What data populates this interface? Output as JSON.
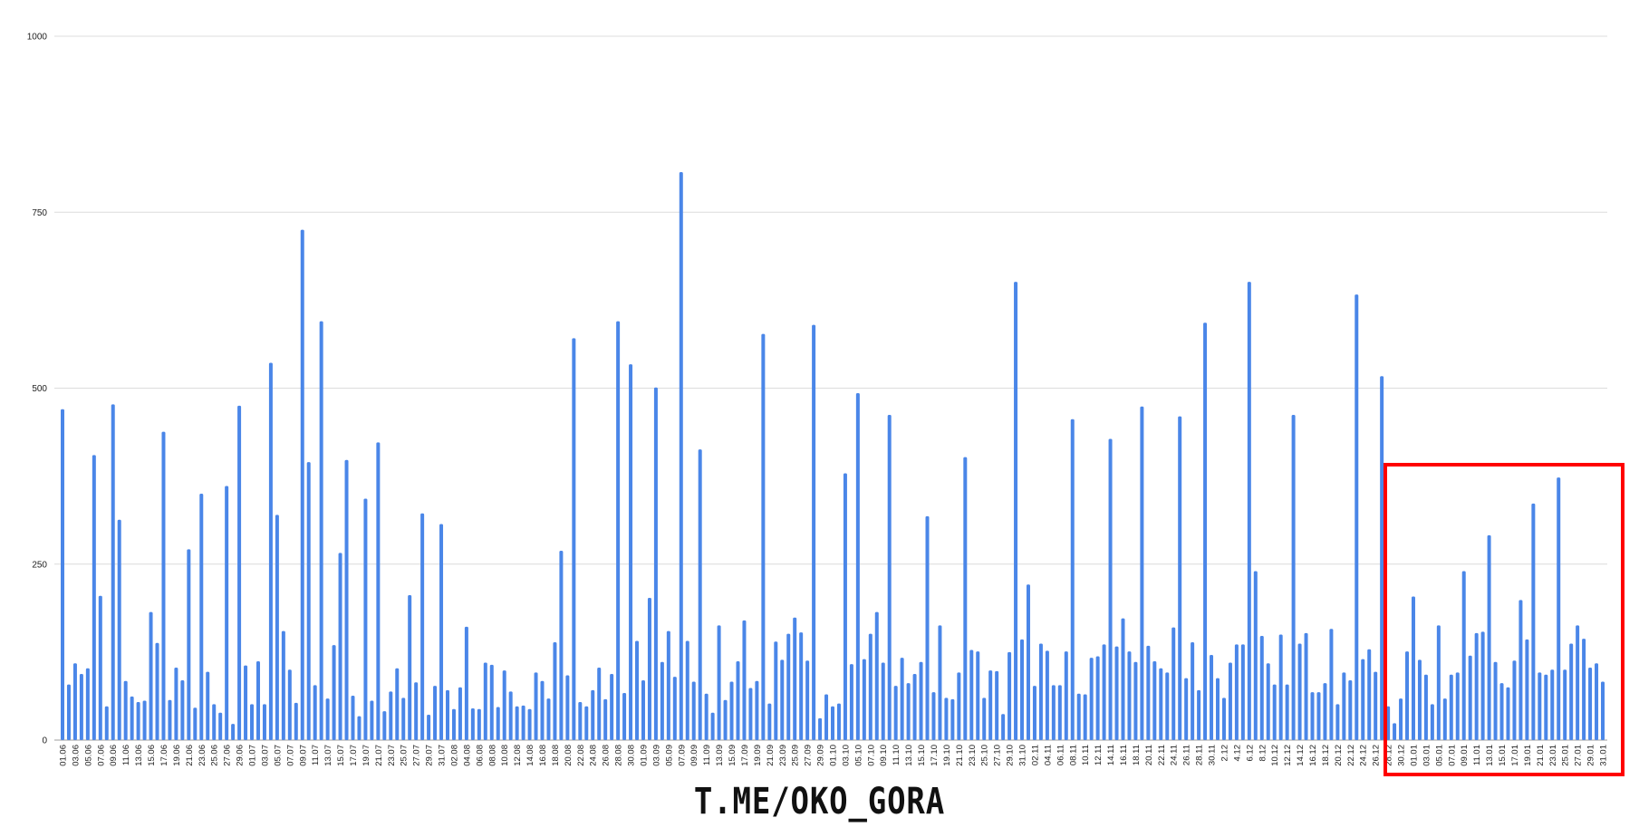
{
  "chart_data": {
    "type": "bar",
    "title": "",
    "xlabel": "",
    "ylabel": "",
    "ylim": [
      0,
      1000
    ],
    "yticks": [
      "0",
      "250",
      "500",
      "750",
      "1000"
    ],
    "grid": true,
    "bar_color": "#4a86e8",
    "categories": [
      "01.06",
      "02.06",
      "03.06",
      "04.06",
      "05.06",
      "06.06",
      "07.06",
      "08.06",
      "09.06",
      "10.06",
      "11.06",
      "12.06",
      "13.06",
      "14.06",
      "15.06",
      "16.06",
      "17.06",
      "18.06",
      "19.06",
      "20.06",
      "21.06",
      "22.06",
      "23.06",
      "24.06",
      "25.06",
      "26.06",
      "27.06",
      "28.06",
      "29.06",
      "30.06",
      "01.07",
      "02.07",
      "03.07",
      "04.07",
      "05.07",
      "06.07",
      "07.07",
      "08.07",
      "09.07",
      "10.07",
      "11.07",
      "12.07",
      "13.07",
      "14.07",
      "15.07",
      "16.07",
      "17.07",
      "18.07",
      "19.07",
      "20.07",
      "21.07",
      "22.07",
      "23.07",
      "24.07",
      "25.07",
      "26.07",
      "27.07",
      "28.07",
      "29.07",
      "30.07",
      "31.07",
      "01.08",
      "02.08",
      "03.08",
      "04.08",
      "05.08",
      "06.08",
      "07.08",
      "08.08",
      "09.08",
      "10.08",
      "11.08",
      "12.08",
      "13.08",
      "14.08",
      "15.08",
      "16.08",
      "17.08",
      "18.08",
      "19.08",
      "20.08",
      "21.08",
      "22.08",
      "23.08",
      "24.08",
      "25.08",
      "26.08",
      "27.08",
      "28.08",
      "29.08",
      "30.08",
      "31.08",
      "01.09",
      "02.09",
      "03.09",
      "04.09",
      "05.09",
      "06.09",
      "07.09",
      "08.09",
      "09.09",
      "10.09",
      "11.09",
      "12.09",
      "13.09",
      "14.09",
      "15.09",
      "16.09",
      "17.09",
      "18.09",
      "19.09",
      "20.09",
      "21.09",
      "22.09",
      "23.09",
      "24.09",
      "25.09",
      "26.09",
      "27.09",
      "28.09",
      "29.09",
      "30.09",
      "01.10",
      "02.10",
      "03.10",
      "04.10",
      "05.10",
      "06.10",
      "07.10",
      "08.10",
      "09.10",
      "10.10",
      "11.10",
      "12.10",
      "13.10",
      "14.10",
      "15.10",
      "16.10",
      "17.10",
      "18.10",
      "19.10",
      "20.10",
      "21.10",
      "22.10",
      "23.10",
      "24.10",
      "25.10",
      "26.10",
      "27.10",
      "28.10",
      "29.10",
      "30.10",
      "31.10",
      "01.11",
      "02.11",
      "03.11",
      "04.11",
      "05.11",
      "06.11",
      "07.11",
      "08.11",
      "09.11",
      "10.11",
      "11.11",
      "12.11",
      "13.11",
      "14.11",
      "15.11",
      "16.11",
      "17.11",
      "18.11",
      "19.11",
      "20.11",
      "21.11",
      "22.11",
      "23.11",
      "24.11",
      "25.11",
      "26.11",
      "27.11",
      "28.11",
      "29.11",
      "30.11",
      "1.12",
      "2.12",
      "3.12",
      "4.12",
      "5.12",
      "6.12",
      "7.12",
      "8.12",
      "9.12",
      "10.12",
      "11.12",
      "12.12",
      "13.12",
      "14.12",
      "15.12",
      "16.12",
      "17.12",
      "18.12",
      "19.12",
      "20.12",
      "21.12",
      "22.12",
      "23.12",
      "24.12",
      "25.12",
      "26.12",
      "27.12",
      "28.12",
      "29.12",
      "30.12",
      "31.12",
      "01.01",
      "02.01",
      "03.01",
      "04.01",
      "05.01",
      "06.01",
      "07.01",
      "08.01",
      "09.01",
      "10.01",
      "11.01",
      "12.01",
      "13.01",
      "14.01",
      "15.01",
      "16.01",
      "17.01",
      "18.01",
      "19.01",
      "20.01",
      "21.01",
      "22.01",
      "23.01",
      "24.01",
      "25.01",
      "26.01",
      "27.01",
      "28.01",
      "29.01",
      "30.01",
      "31.01"
    ],
    "values": [
      470,
      79,
      109,
      94,
      102,
      405,
      205,
      48,
      477,
      313,
      84,
      62,
      54,
      56,
      182,
      138,
      438,
      57,
      103,
      85,
      271,
      46,
      350,
      97,
      51,
      39,
      361,
      23,
      475,
      106,
      51,
      112,
      51,
      536,
      320,
      155,
      100,
      53,
      725,
      395,
      78,
      595,
      59,
      135,
      266,
      398,
      63,
      34,
      343,
      56,
      423,
      41,
      69,
      102,
      60,
      206,
      82,
      322,
      36,
      77,
      307,
      71,
      44,
      75,
      161,
      45,
      44,
      110,
      107,
      47,
      99,
      69,
      48,
      49,
      44,
      96,
      84,
      59,
      139,
      269,
      92,
      571,
      54,
      48,
      71,
      103,
      58,
      94,
      595,
      67,
      534,
      141,
      85,
      202,
      501,
      111,
      155,
      90,
      807,
      141,
      83,
      413,
      66,
      39,
      163,
      57,
      83,
      112,
      170,
      74,
      84,
      577,
      52,
      140,
      114,
      151,
      174,
      153,
      113,
      590,
      31,
      65,
      48,
      52,
      379,
      108,
      493,
      115,
      151,
      182,
      110,
      462,
      77,
      117,
      81,
      94,
      111,
      318,
      68,
      163,
      60,
      58,
      96,
      402,
      128,
      126,
      60,
      99,
      98,
      37,
      125,
      651,
      143,
      221,
      77,
      137,
      127,
      78,
      78,
      126,
      456,
      66,
      65,
      117,
      119,
      136,
      428,
      133,
      173,
      126,
      111,
      474,
      134,
      112,
      102,
      96,
      160,
      460,
      88,
      139,
      71,
      593,
      121,
      88,
      60,
      110,
      136,
      136,
      651,
      240,
      148,
      109,
      79,
      150,
      79,
      462,
      137,
      152,
      68,
      68,
      81,
      158,
      51,
      96,
      85,
      633,
      115,
      129,
      97,
      517,
      48,
      24,
      59,
      126,
      204,
      114,
      93,
      51,
      163,
      59,
      93,
      96,
      240,
      120,
      152,
      154,
      291,
      111,
      81,
      75,
      113,
      199,
      143,
      336,
      96,
      93,
      100,
      373,
      100,
      137,
      163,
      144,
      103,
      109,
      83
    ],
    "label_every": 2,
    "annotation": {
      "type": "highlight-box",
      "from": "28.12",
      "to": "31.01",
      "color": "#ff0000"
    }
  },
  "watermark": "T.ME/OKO_GORA"
}
